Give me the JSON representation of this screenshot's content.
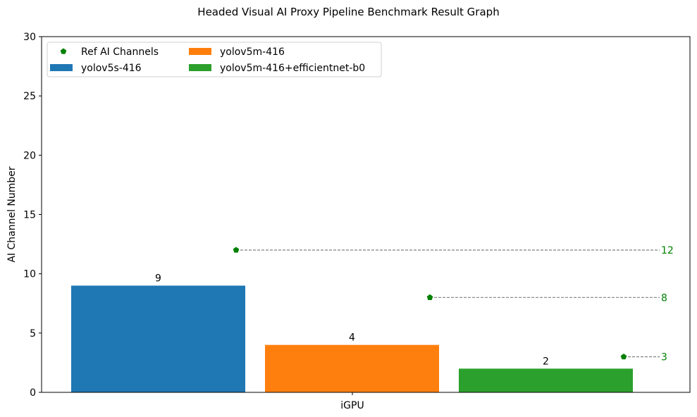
{
  "chart_data": {
    "type": "bar",
    "title": "Headed Visual AI Proxy Pipeline Benchmark Result Graph",
    "xlabel": "",
    "ylabel": "AI Channel Number",
    "categories": [
      "iGPU"
    ],
    "ylim": [
      0,
      30
    ],
    "yticks": [
      0,
      5,
      10,
      15,
      20,
      25,
      30
    ],
    "grid": false,
    "legend_position": "upper left",
    "series": [
      {
        "name": "yolov5s-416",
        "values": [
          9
        ],
        "color": "#1f77b4",
        "ref_channels": 12
      },
      {
        "name": "yolov5m-416",
        "values": [
          4
        ],
        "color": "#ff7f0e",
        "ref_channels": 8
      },
      {
        "name": "yolov5m-416+efficientnet-b0",
        "values": [
          2
        ],
        "color": "#2ca02c",
        "ref_channels": 3
      }
    ],
    "reference": {
      "name": "Ref AI Channels",
      "values": [
        12,
        8,
        3
      ],
      "color": "#008000",
      "marker": "pentagon"
    }
  },
  "legend": {
    "items": [
      {
        "label": "Ref AI Channels",
        "kind": "marker",
        "color": "#008000"
      },
      {
        "label": "yolov5s-416",
        "kind": "patch",
        "color": "#1f77b4"
      },
      {
        "label": "yolov5m-416",
        "kind": "patch",
        "color": "#ff7f0e"
      },
      {
        "label": "yolov5m-416+efficientnet-b0",
        "kind": "patch",
        "color": "#2ca02c"
      }
    ]
  }
}
